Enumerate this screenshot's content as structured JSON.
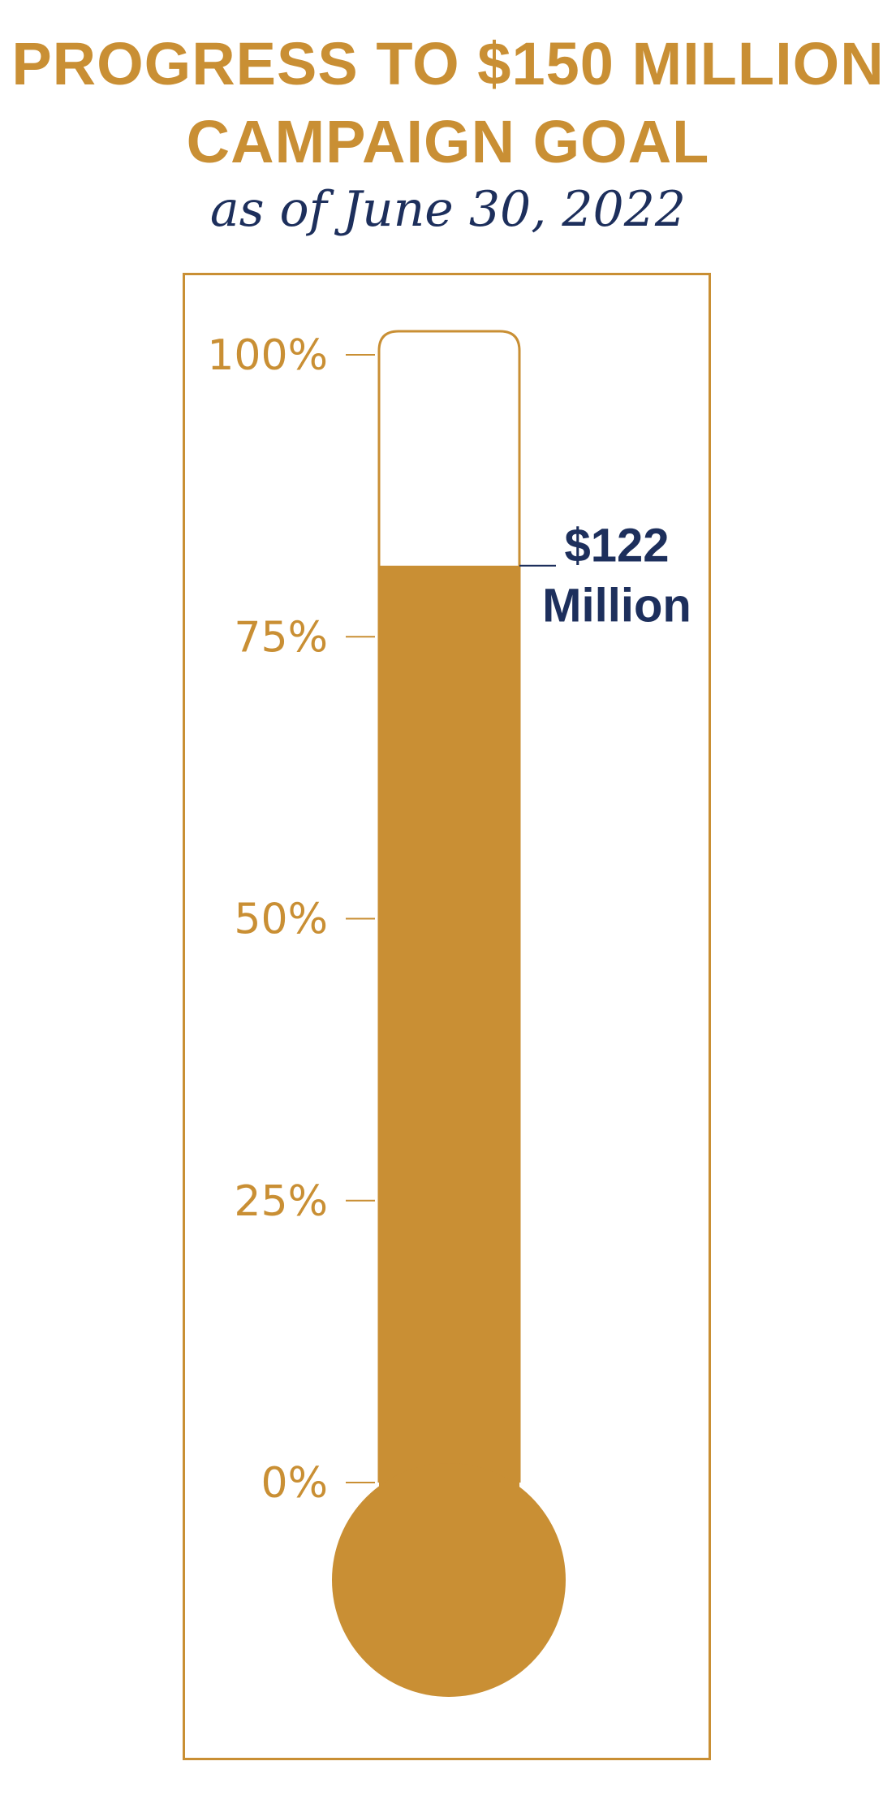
{
  "chart_data": {
    "type": "bar",
    "title_lines": [
      "PROGRESS TO $150 MILLION",
      "CAMPAIGN GOAL"
    ],
    "subtitle": "as of June 30, 2022",
    "goal": 150,
    "raised": 122,
    "percent_complete": 81.3,
    "ylim": [
      0,
      100
    ],
    "ticks": [
      {
        "value": 100,
        "label": "100%"
      },
      {
        "value": 75,
        "label": "75%"
      },
      {
        "value": 50,
        "label": "50%"
      },
      {
        "value": 25,
        "label": "25%"
      },
      {
        "value": 0,
        "label": "0%"
      }
    ],
    "callout": {
      "line1": "$122",
      "line2": "Million"
    },
    "colors": {
      "gold": "#c98f34",
      "navy": "#1d2f5c"
    }
  }
}
